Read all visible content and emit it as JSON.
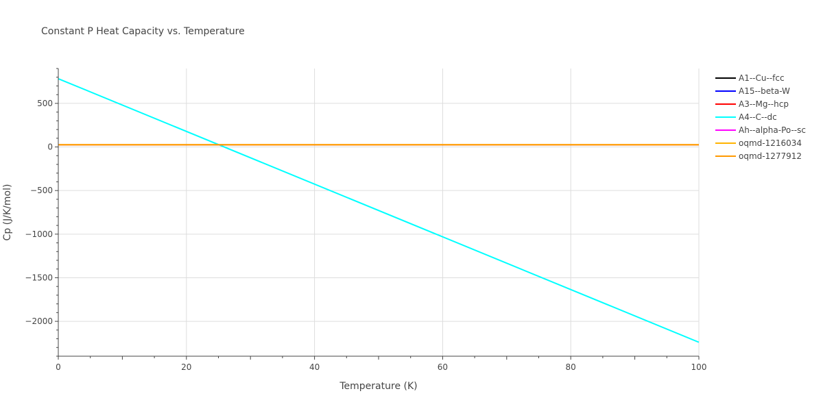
{
  "chart_data": {
    "type": "line",
    "title": "Constant P Heat Capacity vs. Temperature",
    "xlabel": "Temperature (K)",
    "ylabel": "Cp (J/K/mol)",
    "xlim": [
      0,
      100
    ],
    "ylim": [
      -2400,
      900
    ],
    "x_ticks": [
      0,
      20,
      40,
      60,
      80,
      100
    ],
    "x_tick_labels": [
      "0",
      "20",
      "40",
      "60",
      "80",
      "100"
    ],
    "y_ticks": [
      -2000,
      -1500,
      -1000,
      -500,
      0,
      500
    ],
    "y_tick_labels": [
      "−2000",
      "−1500",
      "−1000",
      "−500",
      "0",
      "500"
    ],
    "grid": true,
    "legend_position": "right",
    "series": [
      {
        "name": "A1--Cu--fcc",
        "color": "#000000",
        "x": [
          0,
          100
        ],
        "y": [
          24,
          24
        ]
      },
      {
        "name": "A15--beta-W",
        "color": "#0000ff",
        "x": [
          0,
          100
        ],
        "y": [
          24,
          24
        ]
      },
      {
        "name": "A3--Mg--hcp",
        "color": "#ff0000",
        "x": [
          0,
          100
        ],
        "y": [
          24,
          24
        ]
      },
      {
        "name": "A4--C--dc",
        "color": "#00ffff",
        "x": [
          0,
          100
        ],
        "y": [
          783,
          -2240
        ]
      },
      {
        "name": "Ah--alpha-Po--sc",
        "color": "#ff00ff",
        "x": [
          0,
          100
        ],
        "y": [
          24,
          24
        ]
      },
      {
        "name": "oqmd-1216034",
        "color": "#ffb300",
        "x": [
          0,
          100
        ],
        "y": [
          26,
          26
        ]
      },
      {
        "name": "oqmd-1277912",
        "color": "#ff9900",
        "x": [
          0,
          100
        ],
        "y": [
          25,
          25
        ]
      }
    ]
  }
}
